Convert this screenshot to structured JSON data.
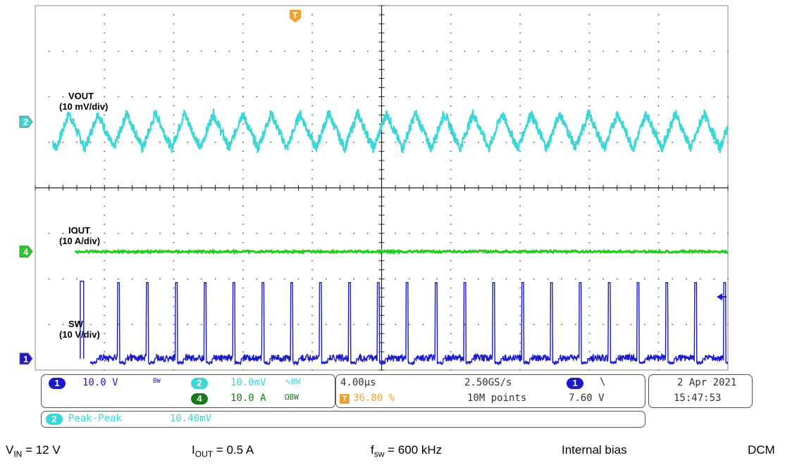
{
  "chart_data": {
    "type": "line",
    "title": "",
    "xlabel": "",
    "ylabel": "",
    "x_unit": "µs",
    "xlim": [
      0,
      40
    ],
    "divisions": {
      "x": 10,
      "y": 8
    },
    "series": [
      {
        "channel": "2",
        "name": "VOUT",
        "scale_label": "(10 mV/div)",
        "color": "#3dd6d6",
        "shape": "sawtooth",
        "frequency_kHz": 600,
        "peak_to_peak_mV": 10.4,
        "offset_div": 1.25
      },
      {
        "channel": "4",
        "name": "IOUT",
        "scale_label": "(10 A/div)",
        "color": "#22cc22",
        "shape": "dc",
        "value_A": 0.5,
        "starts_at_us": 2.3,
        "offset_div": -1.4
      },
      {
        "channel": "1",
        "name": "SW",
        "scale_label": "(10 V/div)",
        "color": "#1a1acc",
        "shape": "pulse",
        "frequency_kHz": 600,
        "pulse_high_V": 12,
        "offset_div": -3.75
      }
    ]
  },
  "markers": {
    "trigger": "T",
    "ch2": "2",
    "ch4": "4",
    "ch1": "1"
  },
  "panel": {
    "ch1_badge": "1",
    "ch1_scale": "10.0 V",
    "ch1_bw": "BW",
    "ch2_badge": "2",
    "ch2_scale": "10.0mV",
    "ch2_flags": "∿BW",
    "ch4_badge": "4",
    "ch4_scale": "10.0 A",
    "ch4_flags": "ΩBW",
    "timebase": "4.00µs",
    "trigger_pos": "36.80 %",
    "sample_rate": "2.50GS/s",
    "record_length": "10M points",
    "trig_badge": "1",
    "trig_slope": "\\",
    "trig_level": "7.60 V",
    "date": "2 Apr  2021",
    "time": "15:47:53",
    "meas_badge": "2",
    "meas_name": "Peak-Peak",
    "meas_value": "10.40mV"
  },
  "footer": {
    "vin_sym": "V",
    "vin_sub": "IN",
    "vin_val": " = 12 V",
    "iout_sym": "I",
    "iout_sub": "OUT",
    "iout_val": " = 0.5 A",
    "fsw_sym": "f",
    "fsw_sub": "sw",
    "fsw_val": " = 600 kHz",
    "bias": "Internal bias",
    "mode": "DCM"
  },
  "colors": {
    "ch1": "#1a1acc",
    "ch2": "#3dd6d6",
    "ch4": "#22cc22",
    "trigger": "#f0a030",
    "grid": "#000000"
  }
}
